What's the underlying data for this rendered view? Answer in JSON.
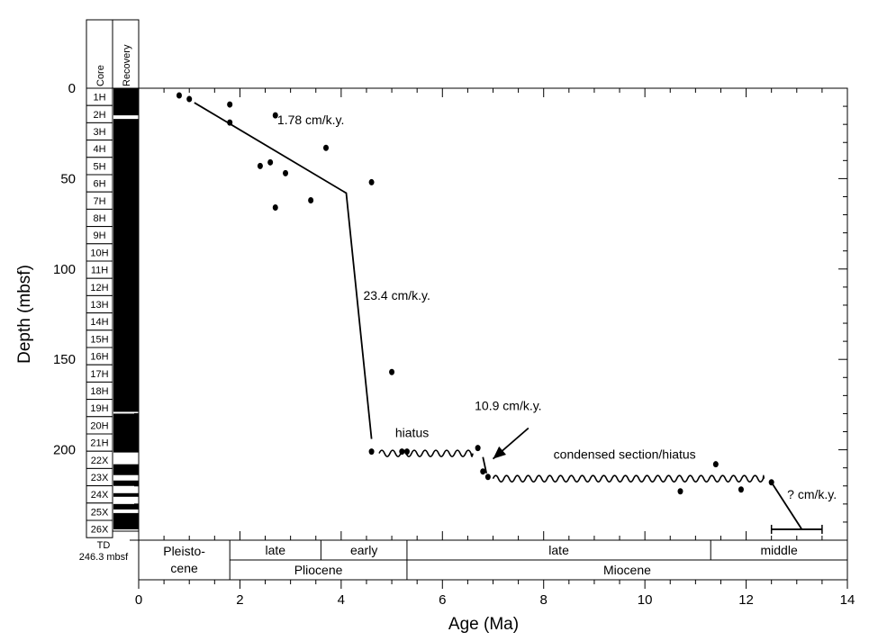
{
  "chart_data": {
    "type": "scatter",
    "xlabel": "Age (Ma)",
    "ylabel": "Depth (mbsf)",
    "xlim": [
      0,
      14
    ],
    "ylim": [
      0,
      250
    ],
    "y_inverted": true,
    "xticks": [
      "0",
      "2",
      "4",
      "6",
      "8",
      "10",
      "12",
      "14"
    ],
    "yticks": [
      "0",
      "50",
      "100",
      "150",
      "200"
    ],
    "grid": false,
    "points": [
      {
        "x": 0.8,
        "y": 4
      },
      {
        "x": 1.0,
        "y": 6
      },
      {
        "x": 1.8,
        "y": 9
      },
      {
        "x": 1.8,
        "y": 19
      },
      {
        "x": 2.7,
        "y": 15
      },
      {
        "x": 3.7,
        "y": 33
      },
      {
        "x": 2.4,
        "y": 43
      },
      {
        "x": 2.6,
        "y": 41
      },
      {
        "x": 2.9,
        "y": 47
      },
      {
        "x": 4.6,
        "y": 52
      },
      {
        "x": 3.4,
        "y": 62
      },
      {
        "x": 2.7,
        "y": 66
      },
      {
        "x": 5.0,
        "y": 157
      },
      {
        "x": 4.6,
        "y": 201
      },
      {
        "x": 5.2,
        "y": 201
      },
      {
        "x": 5.3,
        "y": 201
      },
      {
        "x": 6.7,
        "y": 199
      },
      {
        "x": 6.8,
        "y": 212
      },
      {
        "x": 6.9,
        "y": 215
      },
      {
        "x": 10.7,
        "y": 223
      },
      {
        "x": 11.4,
        "y": 208
      },
      {
        "x": 11.9,
        "y": 222
      },
      {
        "x": 12.5,
        "y": 218
      }
    ],
    "rate_line": [
      {
        "x": 1.1,
        "y": 8
      },
      {
        "x": 4.1,
        "y": 58
      },
      {
        "x": 4.6,
        "y": 194
      }
    ],
    "segment_1090": [
      {
        "x": 6.8,
        "y": 204
      },
      {
        "x": 6.87,
        "y": 213
      }
    ],
    "segment_unknown": [
      {
        "x": 12.5,
        "y": 218
      },
      {
        "x": 13.1,
        "y": 244
      }
    ],
    "error_bar": {
      "xmin": 12.5,
      "xmax": 13.5,
      "y": 244
    },
    "hiatus_lines": [
      {
        "xmin": 4.75,
        "xmax": 6.6,
        "y": 202
      },
      {
        "xmin": 7.0,
        "xmax": 12.35,
        "y": 216
      }
    ],
    "annotations": [
      {
        "text": "1.78 cm/k.y.",
        "x": 3.4,
        "y": 20
      },
      {
        "text": "23.4 cm/k.y.",
        "x": 5.1,
        "y": 117
      },
      {
        "text": "hiatus",
        "x": 5.4,
        "y": 193
      },
      {
        "text": "10.9 cm/k.y.",
        "x": 7.3,
        "y": 178
      },
      {
        "text": "condensed section/hiatus",
        "x": 9.6,
        "y": 205
      },
      {
        "text": "? cm/k.y.",
        "x": 13.3,
        "y": 227
      }
    ],
    "arrow": {
      "from": {
        "x": 7.7,
        "y": 188
      },
      "to": {
        "x": 7.0,
        "y": 205
      }
    }
  },
  "core_column": {
    "header_core": "Core",
    "header_recovery": "Recovery",
    "cores": [
      "1H",
      "2H",
      "3H",
      "4H",
      "5H",
      "6H",
      "7H",
      "8H",
      "9H",
      "10H",
      "11H",
      "12H",
      "13H",
      "14H",
      "15H",
      "16H",
      "17H",
      "18H",
      "19H",
      "20H",
      "21H",
      "22X",
      "23X",
      "24X",
      "25X",
      "26X"
    ],
    "td_line1": "TD",
    "td_line2": "246.3 mbsf",
    "recovery_gaps_mbsf": [
      [
        15,
        17
      ],
      [
        179,
        179.6
      ],
      [
        201.5,
        208
      ],
      [
        214,
        217
      ],
      [
        220,
        224
      ],
      [
        226,
        230
      ],
      [
        233,
        235
      ]
    ]
  },
  "timescale": {
    "subepochs": [
      {
        "label": "late",
        "start": 1.8,
        "end": 3.6
      },
      {
        "label": "early",
        "start": 3.6,
        "end": 5.3
      },
      {
        "label": "late",
        "start": 5.3,
        "end": 11.3
      },
      {
        "label": "middle",
        "start": 11.3,
        "end": 14
      }
    ],
    "pleistocene": {
      "line1": "Pleisto-",
      "line2": "cene",
      "start": 0,
      "end": 1.8
    },
    "epochs": [
      {
        "label": "Pliocene",
        "start": 1.8,
        "end": 5.3
      },
      {
        "label": "Miocene",
        "start": 5.3,
        "end": 14
      }
    ]
  }
}
